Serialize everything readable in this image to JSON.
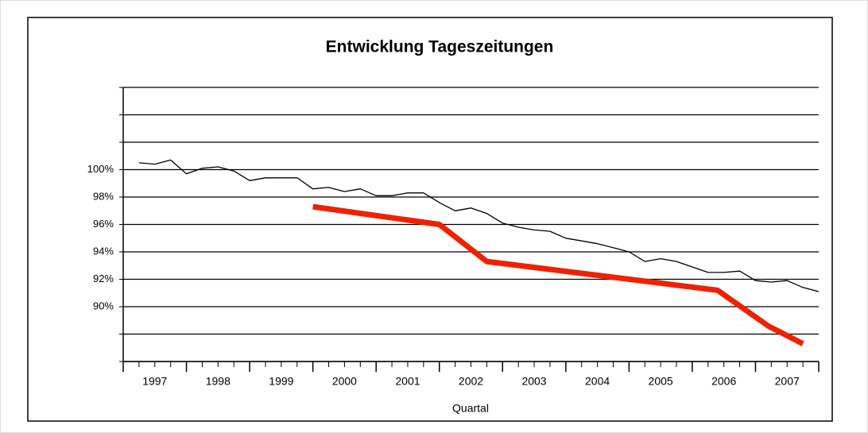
{
  "chart_data": {
    "type": "line",
    "title": "Entwicklung Tageszeitungen",
    "x_label": "Quartal",
    "categories": [
      "1997",
      "1998",
      "1999",
      "2000",
      "2001",
      "2002",
      "2003",
      "2004",
      "2005",
      "2006",
      "2007"
    ],
    "xlim": [
      1997,
      2008
    ],
    "ylim": [
      86,
      106
    ],
    "yticks": [
      {
        "value": 86
      },
      {
        "value": 88
      },
      {
        "value": 90,
        "label": "90%"
      },
      {
        "value": 92,
        "label": "92%"
      },
      {
        "value": 94,
        "label": "94%"
      },
      {
        "value": 96,
        "label": "96%"
      },
      {
        "value": 98,
        "label": "98%"
      },
      {
        "value": 100,
        "label": "100%"
      },
      {
        "value": 102
      },
      {
        "value": 104
      },
      {
        "value": 106
      }
    ],
    "grid": true,
    "series": [
      {
        "color": "#000000",
        "width": 1.3,
        "x": [
          1997.25,
          1997.5,
          1997.75,
          1998,
          1998.25,
          1998.5,
          1998.75,
          1999,
          1999.25,
          1999.5,
          1999.75,
          2000,
          2000.25,
          2000.5,
          2000.75,
          2001,
          2001.25,
          2001.5,
          2001.75,
          2002,
          2002.25,
          2002.5,
          2002.75,
          2003,
          2003.25,
          2003.5,
          2003.75,
          2004,
          2004.25,
          2004.5,
          2004.75,
          2005,
          2005.25,
          2005.5,
          2005.75,
          2006,
          2006.25,
          2006.5,
          2006.75,
          2007,
          2007.25,
          2007.5,
          2007.75,
          2008
        ],
        "values": [
          100.5,
          100.4,
          100.7,
          99.7,
          100.1,
          100.2,
          99.9,
          99.2,
          99.4,
          99.4,
          99.4,
          98.6,
          98.7,
          98.4,
          98.6,
          98.1,
          98.1,
          98.3,
          98.3,
          97.6,
          97.0,
          97.2,
          96.8,
          96.1,
          95.8,
          95.6,
          95.5,
          95.0,
          94.8,
          94.6,
          94.3,
          94.0,
          93.3,
          93.5,
          93.3,
          92.9,
          92.5,
          92.5,
          92.6,
          91.9,
          91.8,
          91.9,
          91.4,
          91.1
        ]
      },
      {
        "color": "#ee2200",
        "width": 7,
        "x": [
          2000.0,
          2002.0,
          2002.75,
          2006.4,
          2007.2,
          2007.75
        ],
        "values": [
          97.3,
          96.0,
          93.3,
          91.2,
          88.6,
          87.3
        ]
      }
    ]
  }
}
